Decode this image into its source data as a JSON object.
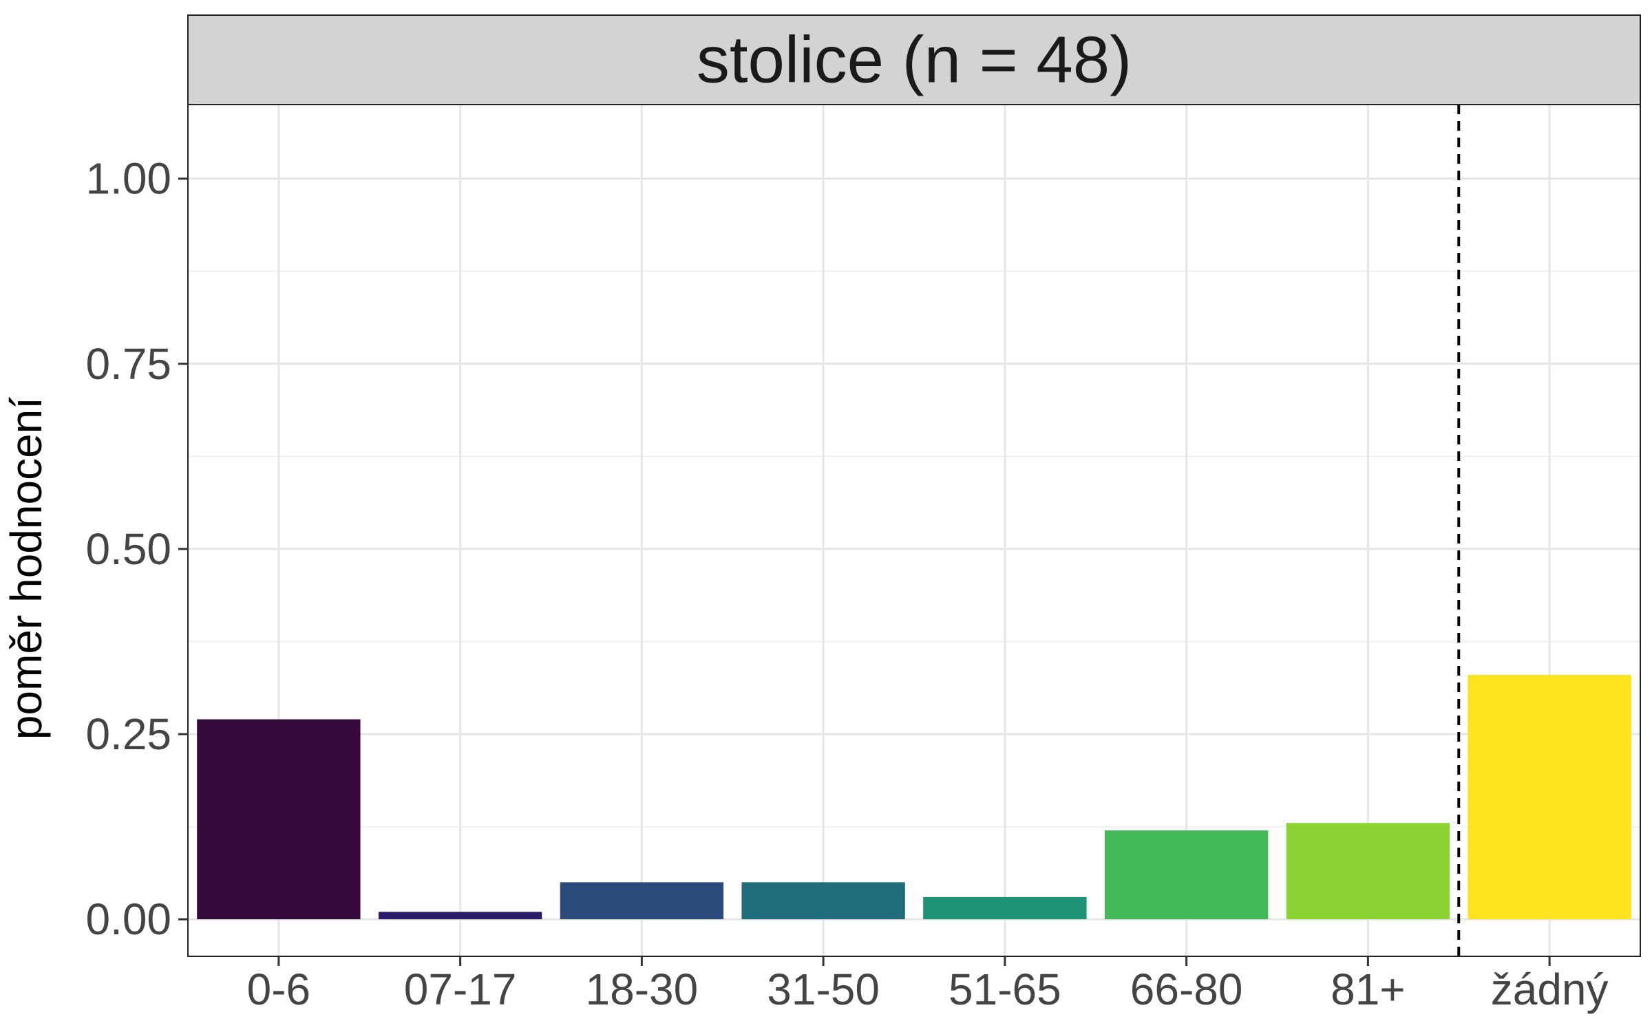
{
  "chart_data": {
    "type": "bar",
    "facet_title": "stolice (n = 48)",
    "ylabel": "poměr hodnocení",
    "xlabel": "",
    "categories": [
      "0-6",
      "07-17",
      "18-30",
      "31-50",
      "51-65",
      "66-80",
      "81+",
      "žádný"
    ],
    "values": [
      0.27,
      0.01,
      0.05,
      0.05,
      0.03,
      0.12,
      0.13,
      0.33
    ],
    "bar_colors": [
      "#360A3C",
      "#2E1A6A",
      "#2B4A7C",
      "#1F6D7B",
      "#1F9474",
      "#42B856",
      "#8BD332",
      "#FCE31E"
    ],
    "ylim": [
      -0.05,
      1.1
    ],
    "yticks": [
      0.0,
      0.25,
      0.5,
      0.75,
      1.0
    ],
    "ytick_labels": [
      "0.00",
      "0.25",
      "0.50",
      "0.75",
      "1.00"
    ],
    "separator": {
      "between_categories": [
        "81+",
        "žádný"
      ],
      "style": "dashed",
      "color": "#000000"
    },
    "grid": true,
    "legend": false,
    "colors": {
      "strip_background": "#D3D3D3",
      "panel_border": "#222222",
      "grid_major": "#E6E6E6",
      "grid_minor": "#F0F0F0"
    }
  }
}
